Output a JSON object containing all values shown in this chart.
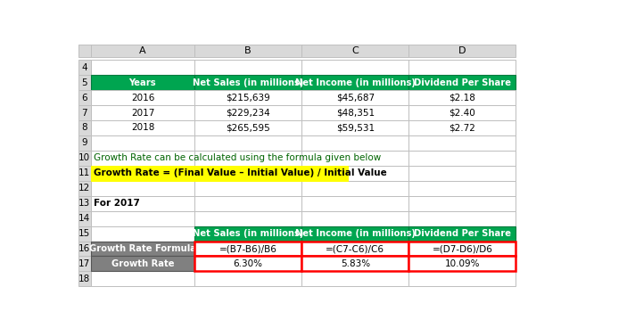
{
  "figsize": [
    7.03,
    3.68
  ],
  "dpi": 100,
  "bg_color": "#FFFFFF",
  "col_header_bg": "#D9D9D9",
  "col_header_text": "#000000",
  "grid_color": "#BFBFBF",
  "green_header_bg": "#00A550",
  "green_header_text": "#FFFFFF",
  "white_cell_bg": "#FFFFFF",
  "white_cell_text": "#000000",
  "gray_cell_bg": "#808080",
  "gray_cell_text": "#FFFFFF",
  "yellow_bg": "#FFFF00",
  "red_border": "#FF0000",
  "top_table_headers": [
    "Years",
    "Net Sales (in millions)",
    "Net Income (in millions)",
    "Dividend Per Share"
  ],
  "top_table_data": [
    [
      "2016",
      "$215,639",
      "$45,687",
      "$2.18"
    ],
    [
      "2017",
      "$229,234",
      "$48,351",
      "$2.40"
    ],
    [
      "2018",
      "$265,595",
      "$59,531",
      "$2.72"
    ]
  ],
  "text_row10": "Growth Rate can be calculated using the formula given below",
  "text_row11": "Growth Rate = (Final Value – Initial Value) / Initial Value",
  "text_row13": "For 2017",
  "bottom_table_headers": [
    "Net Sales (in millions)",
    "Net Income (in millions)",
    "Dividend Per Share"
  ],
  "formula_row": [
    "=(B7-B6)/B6",
    "=(C7-C6)/C6",
    "=(D7-D6)/D6"
  ],
  "growth_row": [
    "6.30%",
    "5.83%",
    "10.09%"
  ],
  "col_a_label_row16": "Growth Rate Formula",
  "col_a_label_row17": "Growth Rate",
  "row_numbers": [
    "",
    "4",
    "5",
    "6",
    "7",
    "8",
    "9",
    "10",
    "11",
    "12",
    "13",
    "14",
    "15",
    "16",
    "17",
    "18"
  ],
  "col_letters": [
    "A",
    "B",
    "C",
    "D"
  ]
}
